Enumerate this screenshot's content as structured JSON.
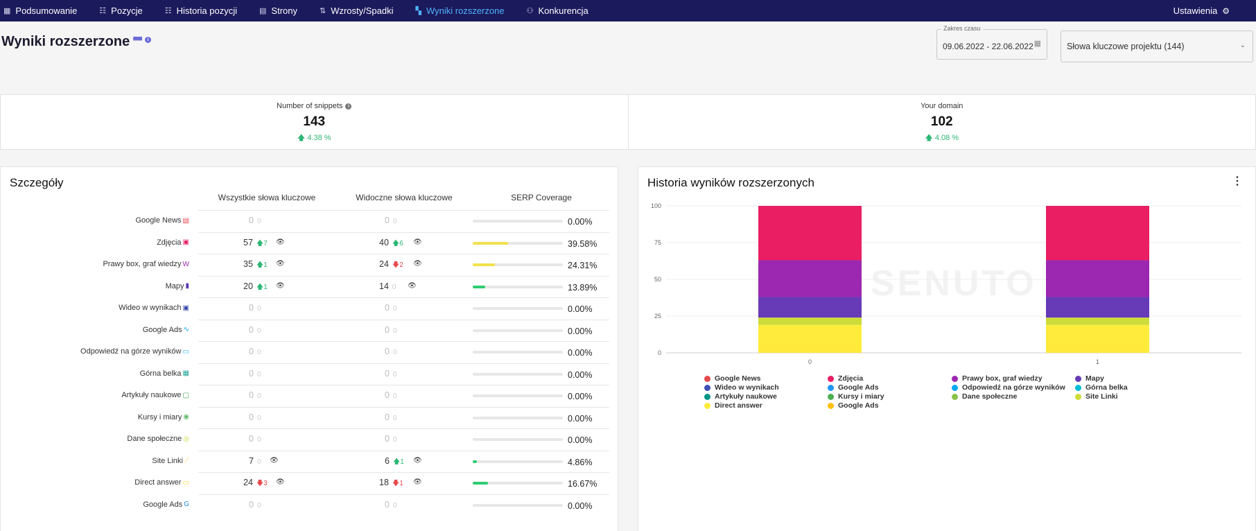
{
  "nav": {
    "items": [
      {
        "icon": "▦",
        "label": "Podsumowanie",
        "active": false,
        "name": "nav-podsumowanie"
      },
      {
        "icon": "☷",
        "label": "Pozycje",
        "active": false,
        "name": "nav-pozycje"
      },
      {
        "icon": "☷",
        "label": "Historia pozycji",
        "active": false,
        "name": "nav-historia-pozycji"
      },
      {
        "icon": "▤",
        "label": "Strony",
        "active": false,
        "name": "nav-strony"
      },
      {
        "icon": "⇅",
        "label": "Wzrosty/Spadki",
        "active": false,
        "name": "nav-wzrosty-spadki"
      },
      {
        "icon": "▚",
        "label": "Wyniki rozszerzone",
        "active": true,
        "name": "nav-wyniki-rozszerzone"
      },
      {
        "icon": "⚇",
        "label": "Konkurencja",
        "active": false,
        "name": "nav-konkurencja"
      }
    ],
    "settings_label": "Ustawienia"
  },
  "header": {
    "title": "Wyniki rozszerzone",
    "date_label": "Zakres czasu",
    "date_value": "09.06.2022 - 22.06.2022",
    "keywords_value": "Słowa kluczowe projektu (144)"
  },
  "stats": [
    {
      "label": "Number of snippets",
      "value": "143",
      "change": "4.38 %",
      "info": true
    },
    {
      "label": "Your domain",
      "value": "102",
      "change": "4.08 %",
      "info": false
    }
  ],
  "details": {
    "title": "Szczegóły",
    "col_all": "Wszystkie słowa kluczowe",
    "col_visible": "Widoczne słowa kluczowe",
    "col_serp": "SERP Coverage",
    "rows": [
      {
        "label": "Google News",
        "icon": "▤",
        "icon_color": "#e5484d",
        "all": "0",
        "all_delta": "0",
        "all_dir": "zero",
        "vis": "0",
        "vis_delta": "0",
        "vis_dir": "zero",
        "pct": "0.00%",
        "fill": 0,
        "bar_color": "#2ecc71",
        "eye": false
      },
      {
        "label": "Zdjęcia",
        "icon": "▣",
        "icon_color": "#e91e63",
        "all": "57",
        "all_delta": "7",
        "all_dir": "up",
        "vis": "40",
        "vis_delta": "6",
        "vis_dir": "up",
        "pct": "39.58%",
        "fill": 0.3958,
        "bar_color": "#f2e14c",
        "eye": true
      },
      {
        "label": "Prawy box, graf wiedzy",
        "icon": "W",
        "icon_color": "#9c27b0",
        "all": "35",
        "all_delta": "1",
        "all_dir": "up",
        "vis": "24",
        "vis_delta": "2",
        "vis_dir": "down",
        "pct": "24.31%",
        "fill": 0.2431,
        "bar_color": "#f2e14c",
        "eye": true
      },
      {
        "label": "Mapy",
        "icon": "▮",
        "icon_color": "#5e35b1",
        "all": "20",
        "all_delta": "1",
        "all_dir": "up",
        "vis": "14",
        "vis_delta": "0",
        "vis_dir": "zero",
        "pct": "13.89%",
        "fill": 0.1389,
        "bar_color": "#2ecc71",
        "eye": true
      },
      {
        "label": "Wideo w wynikach",
        "icon": "▣",
        "icon_color": "#3949ab",
        "all": "0",
        "all_delta": "0",
        "all_dir": "zero",
        "vis": "0",
        "vis_delta": "0",
        "vis_dir": "zero",
        "pct": "0.00%",
        "fill": 0,
        "bar_color": "#2ecc71",
        "eye": false
      },
      {
        "label": "Google Ads",
        "icon": "∿",
        "icon_color": "#03a9f4",
        "all": "0",
        "all_delta": "0",
        "all_dir": "zero",
        "vis": "0",
        "vis_delta": "0",
        "vis_dir": "zero",
        "pct": "0.00%",
        "fill": 0,
        "bar_color": "#2ecc71",
        "eye": false
      },
      {
        "label": "Odpowiedź na górze wyników",
        "icon": "▭",
        "icon_color": "#29b6f6",
        "all": "0",
        "all_delta": "0",
        "all_dir": "zero",
        "vis": "0",
        "vis_delta": "0",
        "vis_dir": "zero",
        "pct": "0.00%",
        "fill": 0,
        "bar_color": "#2ecc71",
        "eye": false
      },
      {
        "label": "Górna belka",
        "icon": "▦",
        "icon_color": "#26a69a",
        "all": "0",
        "all_delta": "0",
        "all_dir": "zero",
        "vis": "0",
        "vis_delta": "0",
        "vis_dir": "zero",
        "pct": "0.00%",
        "fill": 0,
        "bar_color": "#2ecc71",
        "eye": false
      },
      {
        "label": "Artykuły naukowe",
        "icon": "▢",
        "icon_color": "#43a047",
        "all": "0",
        "all_delta": "0",
        "all_dir": "zero",
        "vis": "0",
        "vis_delta": "0",
        "vis_dir": "zero",
        "pct": "0.00%",
        "fill": 0,
        "bar_color": "#2ecc71",
        "eye": false
      },
      {
        "label": "Kursy i miary",
        "icon": "◉",
        "icon_color": "#66bb6a",
        "all": "0",
        "all_delta": "0",
        "all_dir": "zero",
        "vis": "0",
        "vis_delta": "0",
        "vis_dir": "zero",
        "pct": "0.00%",
        "fill": 0,
        "bar_color": "#2ecc71",
        "eye": false
      },
      {
        "label": "Dane społeczne",
        "icon": "◎",
        "icon_color": "#cddc39",
        "all": "0",
        "all_delta": "0",
        "all_dir": "zero",
        "vis": "0",
        "vis_delta": "0",
        "vis_dir": "zero",
        "pct": "0.00%",
        "fill": 0,
        "bar_color": "#2ecc71",
        "eye": false
      },
      {
        "label": "Site Linki",
        "icon": "⟋",
        "icon_color": "#ffd54f",
        "all": "7",
        "all_delta": "0",
        "all_dir": "zero",
        "vis": "6",
        "vis_delta": "1",
        "vis_dir": "up",
        "pct": "4.86%",
        "fill": 0.0486,
        "bar_color": "#2ecc71",
        "eye": true
      },
      {
        "label": "Direct answer",
        "icon": "▭",
        "icon_color": "#fdd835",
        "all": "24",
        "all_delta": "3",
        "all_dir": "down",
        "vis": "18",
        "vis_delta": "1",
        "vis_dir": "down",
        "pct": "16.67%",
        "fill": 0.1667,
        "bar_color": "#2ecc71",
        "eye": true
      },
      {
        "label": "Google Ads",
        "icon": "G",
        "icon_color": "#1e88e5",
        "all": "0",
        "all_delta": "0",
        "all_dir": "zero",
        "vis": "0",
        "vis_delta": "0",
        "vis_dir": "zero",
        "pct": "0.00%",
        "fill": 0,
        "bar_color": "#2ecc71",
        "eye": false
      }
    ]
  },
  "chart_data": {
    "type": "bar",
    "title": "Historia wyników rozszerzonych",
    "stacked": true,
    "categories": [
      "0",
      "1"
    ],
    "ylim": [
      0,
      100
    ],
    "yticks": [
      "0",
      "25",
      "50",
      "75",
      "100"
    ],
    "grid": true,
    "legend_position": "bottom",
    "watermark": "SENUTO",
    "series": [
      {
        "name": "Google News",
        "color": "#e5484d",
        "values": [
          0,
          0
        ]
      },
      {
        "name": "Zdjęcia",
        "color": "#e91e63",
        "values": [
          37,
          37
        ]
      },
      {
        "name": "Prawy box, graf wiedzy",
        "color": "#9c27b0",
        "values": [
          25,
          25
        ]
      },
      {
        "name": "Mapy",
        "color": "#673ab7",
        "values": [
          14,
          14
        ]
      },
      {
        "name": "Wideo w wynikach",
        "color": "#3f51b5",
        "values": [
          0,
          0
        ]
      },
      {
        "name": "Google Ads",
        "color": "#2196f3",
        "values": [
          0,
          0
        ]
      },
      {
        "name": "Odpowiedź na górze wyników",
        "color": "#03a9f4",
        "values": [
          0,
          0
        ]
      },
      {
        "name": "Górna belka",
        "color": "#00bcd4",
        "values": [
          0,
          0
        ]
      },
      {
        "name": "Artykuły naukowe",
        "color": "#009688",
        "values": [
          0,
          0
        ]
      },
      {
        "name": "Kursy i miary",
        "color": "#4caf50",
        "values": [
          0,
          0
        ]
      },
      {
        "name": "Dane społeczne",
        "color": "#8bc34a",
        "values": [
          0,
          0
        ]
      },
      {
        "name": "Site Linki",
        "color": "#cddc39",
        "values": [
          5,
          5
        ]
      },
      {
        "name": "Direct answer",
        "color": "#ffeb3b",
        "values": [
          19,
          19
        ]
      },
      {
        "name": "Google Ads",
        "color": "#ffc107",
        "values": [
          0,
          0
        ]
      }
    ]
  }
}
